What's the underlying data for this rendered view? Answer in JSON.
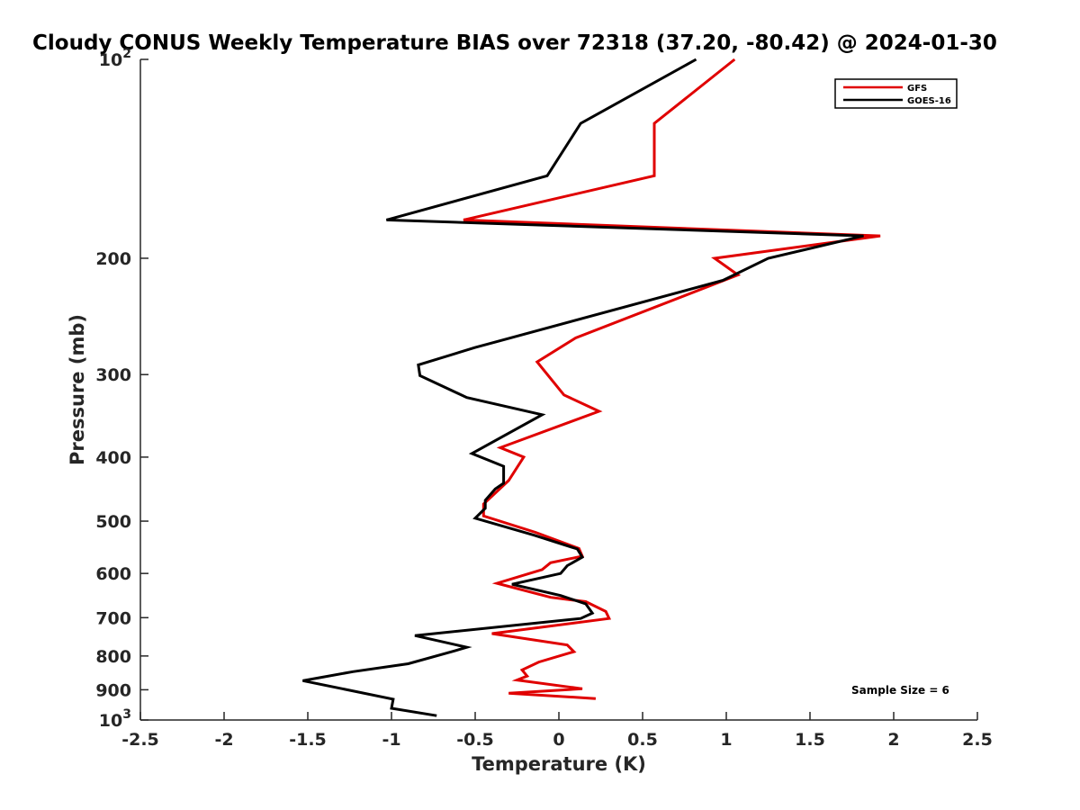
{
  "chart_data": {
    "type": "line",
    "title": "Cloudy CONUS Weekly Temperature BIAS over 72318 (37.20, -80.42) @ 2024-01-30",
    "xlabel": "Temperature (K)",
    "ylabel": "Pressure (mb)",
    "xlim": [
      -2.5,
      2.5
    ],
    "ylim": [
      100,
      1000
    ],
    "yscale": "log",
    "y_reversed": true,
    "grid": false,
    "legend_position": "top-right",
    "x_ticks": [
      "-2.5",
      "-2",
      "-1.5",
      "-1",
      "-0.5",
      "0",
      "0.5",
      "1",
      "1.5",
      "2",
      "2.5"
    ],
    "y_ticks": [
      {
        "value": 100,
        "base": "10",
        "exp": "2"
      },
      {
        "value": 200,
        "label": "200"
      },
      {
        "value": 300,
        "label": "300"
      },
      {
        "value": 400,
        "label": "400"
      },
      {
        "value": 500,
        "label": "500"
      },
      {
        "value": 600,
        "label": "600"
      },
      {
        "value": 700,
        "label": "700"
      },
      {
        "value": 800,
        "label": "800"
      },
      {
        "value": 900,
        "label": "900"
      },
      {
        "value": 1000,
        "base": "10",
        "exp": "3"
      }
    ],
    "annotation": "Sample Size = 6",
    "series": [
      {
        "name": "GFS",
        "color": "#e00000",
        "points": [
          [
            1.05,
            100
          ],
          [
            0.57,
            125
          ],
          [
            0.57,
            150
          ],
          [
            -0.57,
            175
          ],
          [
            1.92,
            185
          ],
          [
            0.93,
            200
          ],
          [
            1.07,
            212
          ],
          [
            0.1,
            264
          ],
          [
            -0.13,
            287
          ],
          [
            0.03,
            322
          ],
          [
            0.24,
            341
          ],
          [
            -0.35,
            387
          ],
          [
            -0.21,
            400
          ],
          [
            -0.3,
            434
          ],
          [
            -0.45,
            471
          ],
          [
            -0.45,
            491
          ],
          [
            -0.14,
            520
          ],
          [
            0.12,
            550
          ],
          [
            0.14,
            565
          ],
          [
            -0.05,
            578
          ],
          [
            -0.1,
            592
          ],
          [
            -0.37,
            621
          ],
          [
            -0.05,
            652
          ],
          [
            0.16,
            662
          ],
          [
            0.28,
            685
          ],
          [
            0.3,
            702
          ],
          [
            -0.4,
            740
          ],
          [
            0.05,
            770
          ],
          [
            0.09,
            788
          ],
          [
            -0.12,
            817
          ],
          [
            -0.22,
            840
          ],
          [
            -0.19,
            858
          ],
          [
            -0.25,
            870
          ],
          [
            0.14,
            897
          ],
          [
            -0.3,
            911
          ],
          [
            0.22,
            928
          ]
        ]
      },
      {
        "name": "GOES-16",
        "color": "#000000",
        "points": [
          [
            0.82,
            100
          ],
          [
            0.13,
            125
          ],
          [
            -0.07,
            150
          ],
          [
            -1.03,
            175
          ],
          [
            1.82,
            185
          ],
          [
            1.25,
            200
          ],
          [
            0.98,
            216
          ],
          [
            -0.5,
            273
          ],
          [
            -0.84,
            290
          ],
          [
            -0.83,
            301
          ],
          [
            -0.55,
            325
          ],
          [
            -0.1,
            345
          ],
          [
            -0.52,
            395
          ],
          [
            -0.33,
            413
          ],
          [
            -0.33,
            438
          ],
          [
            -0.38,
            447
          ],
          [
            -0.44,
            465
          ],
          [
            -0.44,
            478
          ],
          [
            -0.5,
            495
          ],
          [
            -0.15,
            525
          ],
          [
            0.11,
            551
          ],
          [
            0.14,
            567
          ],
          [
            0.05,
            584
          ],
          [
            0.01,
            600
          ],
          [
            -0.28,
            623
          ],
          [
            0.01,
            648
          ],
          [
            0.16,
            667
          ],
          [
            0.2,
            689
          ],
          [
            0.13,
            702
          ],
          [
            -0.86,
            745
          ],
          [
            -0.55,
            776
          ],
          [
            -0.63,
            787
          ],
          [
            -0.9,
            822
          ],
          [
            -1.23,
            845
          ],
          [
            -1.43,
            863
          ],
          [
            -1.53,
            872
          ],
          [
            -0.99,
            930
          ],
          [
            -1.0,
            960
          ],
          [
            -0.73,
            985
          ]
        ]
      }
    ]
  }
}
